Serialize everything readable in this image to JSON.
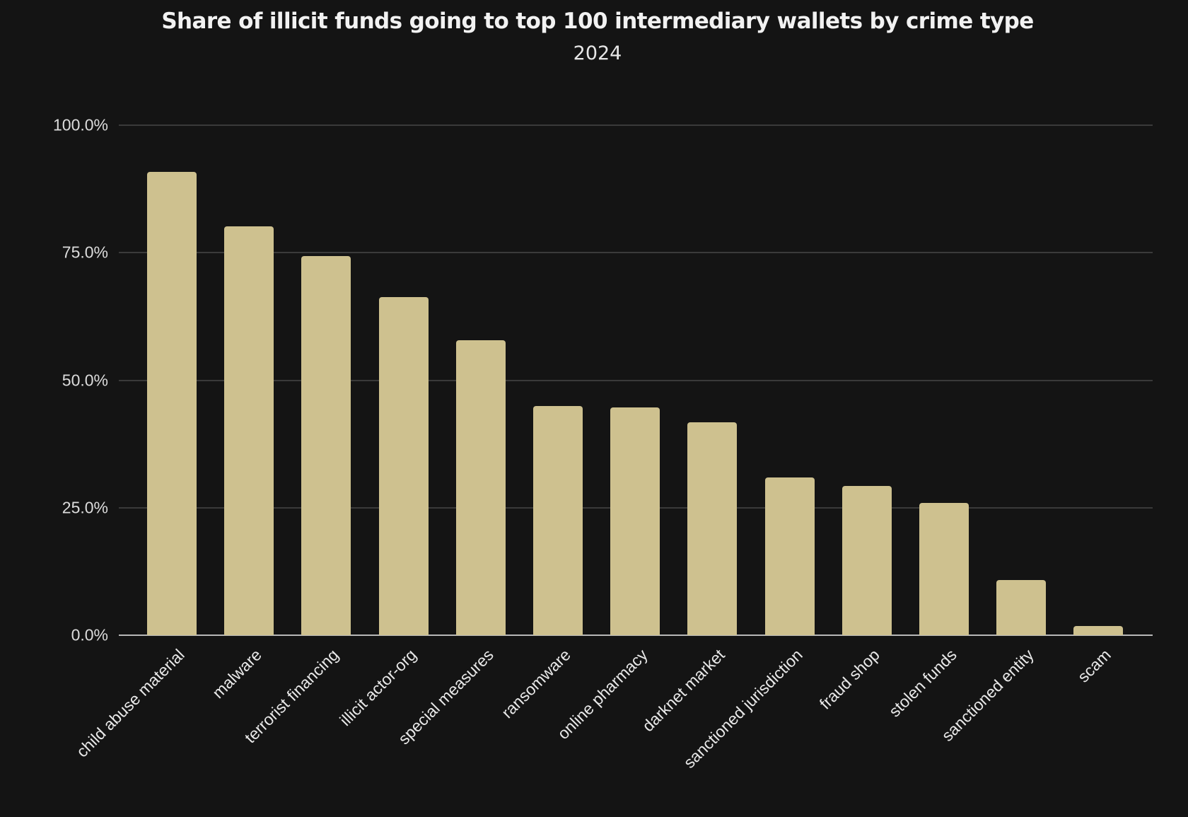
{
  "chart_data": {
    "type": "bar",
    "title": "Share of illicit funds going to top 100 intermediary wallets by crime type",
    "subtitle": "2024",
    "xlabel": "",
    "ylabel": "",
    "ylim": [
      0,
      100
    ],
    "yticks": [
      "0.0%",
      "25.0%",
      "50.0%",
      "75.0%",
      "100.0%"
    ],
    "grid": true,
    "legend": null,
    "bar_color": "#cec18f",
    "background": "#141414",
    "categories": [
      "child abuse material",
      "malware",
      "terrorist financing",
      "illicit actor-org",
      "special measures",
      "ransomware",
      "online pharmacy",
      "darknet market",
      "sanctioned jurisdiction",
      "fraud shop",
      "stolen funds",
      "sanctioned entity",
      "scam"
    ],
    "values": [
      90.9,
      80.2,
      74.4,
      66.3,
      57.8,
      45.0,
      44.7,
      41.8,
      30.9,
      29.3,
      26.0,
      10.8,
      1.8
    ]
  }
}
